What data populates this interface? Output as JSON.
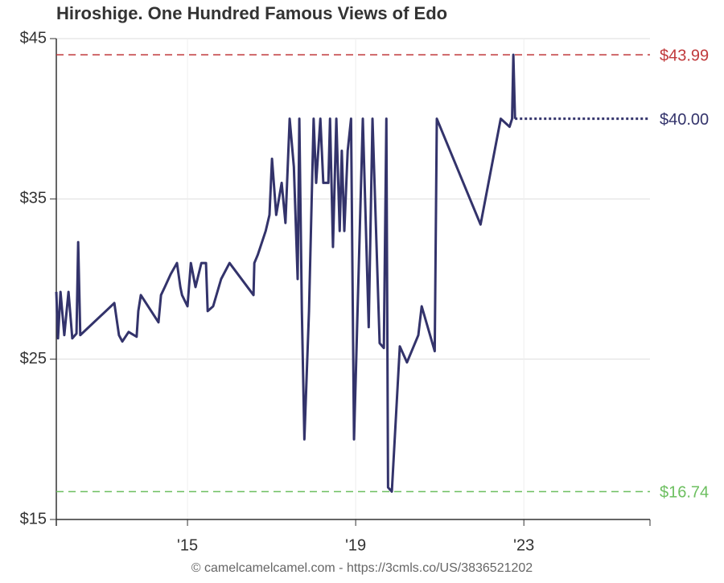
{
  "chart_data": {
    "type": "line",
    "title": "Hiroshige. One Hundred Famous Views of Edo",
    "footer": "© camelcamelcamel.com - https://3cmls.co/US/3836521202",
    "xlim": [
      2011.88,
      2026.0
    ],
    "xticks": [
      {
        "value": 2015,
        "label": "'15"
      },
      {
        "value": 2019,
        "label": "'19"
      },
      {
        "value": 2023,
        "label": "'23"
      }
    ],
    "ylim": [
      15,
      45
    ],
    "yticks": [
      {
        "value": 15,
        "label": "$15"
      },
      {
        "value": 25,
        "label": "$25"
      },
      {
        "value": 35,
        "label": "$35"
      },
      {
        "value": 45,
        "label": "$45"
      }
    ],
    "grid": true,
    "series": [
      {
        "color": "#33336b",
        "x": [
          2011.88,
          2011.92,
          2011.98,
          2012.07,
          2012.17,
          2012.26,
          2012.36,
          2012.4,
          2012.45,
          2013.26,
          2013.37,
          2013.45,
          2013.6,
          2013.79,
          2013.83,
          2013.89,
          2014.31,
          2014.37,
          2014.46,
          2014.6,
          2014.75,
          2014.83,
          2014.87,
          2015.0,
          2015.08,
          2015.19,
          2015.33,
          2015.44,
          2015.48,
          2015.61,
          2015.8,
          2016.0,
          2016.57,
          2016.59,
          2016.67,
          2016.86,
          2016.95,
          2017.01,
          2017.11,
          2017.24,
          2017.33,
          2017.43,
          2017.53,
          2017.62,
          2017.66,
          2017.72,
          2017.78,
          2017.89,
          2018.0,
          2018.06,
          2018.16,
          2018.23,
          2018.35,
          2018.39,
          2018.46,
          2018.54,
          2018.62,
          2018.67,
          2018.73,
          2018.81,
          2018.89,
          2018.96,
          2019.0,
          2019.17,
          2019.31,
          2019.4,
          2019.57,
          2019.67,
          2019.73,
          2019.77,
          2019.86,
          2020.05,
          2020.22,
          2020.49,
          2020.57,
          2020.88,
          2020.93,
          2021.97,
          2022.45,
          2022.66,
          2022.72,
          2022.75,
          2022.79
        ],
        "values": [
          29.2,
          26.3,
          29.2,
          26.5,
          29.2,
          26.3,
          26.6,
          32.3,
          26.5,
          28.5,
          26.5,
          26.1,
          26.7,
          26.4,
          28,
          29,
          27.3,
          29,
          29.5,
          30.3,
          31,
          29.5,
          29,
          28.3,
          31,
          29.5,
          31,
          31,
          28,
          28.3,
          30,
          31,
          29,
          31,
          31.5,
          33,
          34,
          37.5,
          34,
          36,
          33.5,
          40,
          37,
          30,
          40,
          28,
          20,
          28,
          40,
          36,
          40,
          36,
          36,
          40,
          32,
          40,
          33,
          38,
          33,
          38,
          40,
          20,
          23.7,
          40,
          27,
          40,
          26,
          25.7,
          40,
          17,
          16.74,
          25.8,
          24.8,
          26.5,
          28.3,
          25.5,
          40,
          33.4,
          40,
          39.5,
          40,
          43.99,
          40
        ]
      }
    ],
    "reference_lines": [
      {
        "value": 43.99,
        "label": "$43.99",
        "color": "#c0393b",
        "style": "dashed"
      },
      {
        "value": 40,
        "label": "$40.00",
        "color": "#33336b",
        "style": "dotted"
      },
      {
        "value": 16.74,
        "label": "$16.74",
        "color": "#6cbf5f",
        "style": "dashed"
      }
    ]
  }
}
